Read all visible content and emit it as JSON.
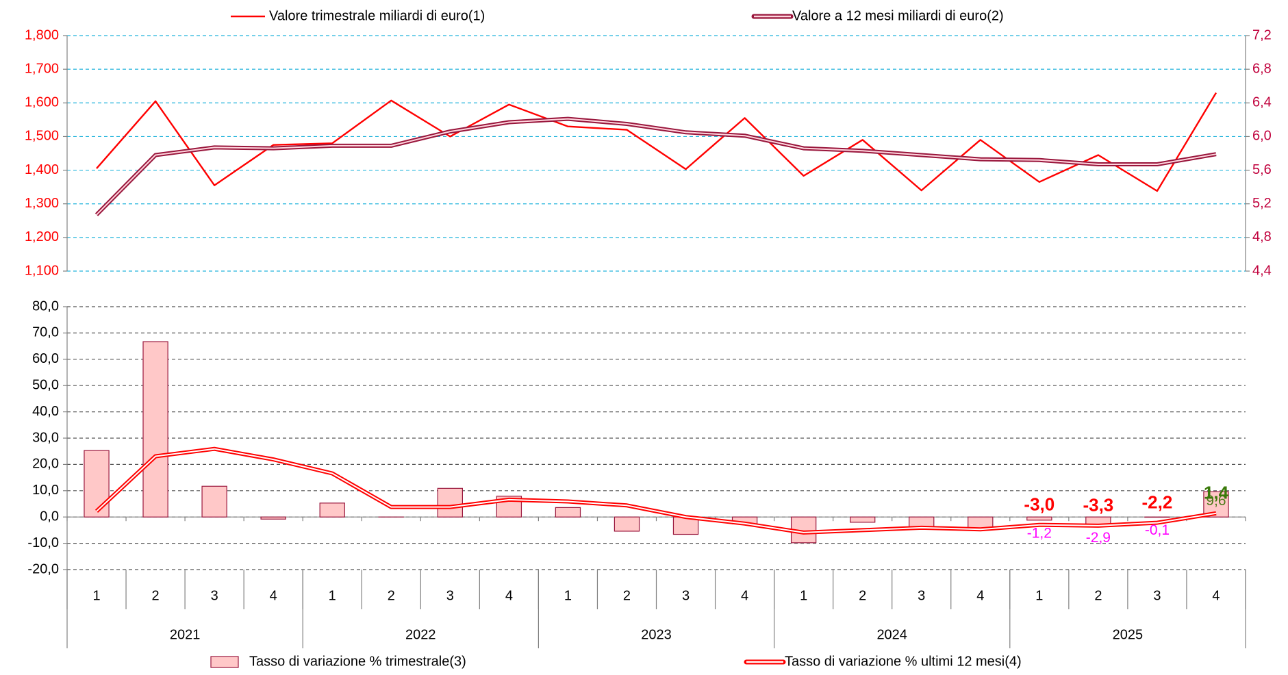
{
  "chart_data": [
    {
      "type": "line",
      "ylim": [
        1100,
        1800
      ],
      "yticks": [
        {
          "value": 1100,
          "label": "1,100"
        },
        {
          "value": 1200,
          "label": "1,200"
        },
        {
          "value": 1300,
          "label": "1,300"
        },
        {
          "value": 1400,
          "label": "1,400"
        },
        {
          "value": 1500,
          "label": "1,500"
        },
        {
          "value": 1600,
          "label": "1,600"
        },
        {
          "value": 1700,
          "label": "1,700"
        },
        {
          "value": 1800,
          "label": "1,800"
        }
      ],
      "y2lim": [
        4.4,
        7.2
      ],
      "y2ticks": [
        {
          "value": 4.4,
          "label": "4,4"
        },
        {
          "value": 4.8,
          "label": "4,8"
        },
        {
          "value": 5.2,
          "label": "5,2"
        },
        {
          "value": 5.6,
          "label": "5,6"
        },
        {
          "value": 6.0,
          "label": "6,0"
        },
        {
          "value": 6.4,
          "label": "6,4"
        },
        {
          "value": 6.8,
          "label": "6,8"
        },
        {
          "value": 7.2,
          "label": "7,2"
        }
      ],
      "ytick_color": "#ff0000",
      "y2tick_color": "#c0003c",
      "grid": true,
      "grid_color": "#22b4dc",
      "legend": "top",
      "series": [
        {
          "name": "Valore trimestrale miliardi di euro(1)",
          "color": "#ff0000",
          "values": [
            1405,
            1605,
            1355,
            1475,
            1480,
            1607,
            1500,
            1595,
            1530,
            1520,
            1403,
            1555,
            1383,
            1490,
            1340,
            1490,
            1365,
            1445,
            1338,
            1630
          ]
        },
        {
          "name": "Valore a 12 mesi miliardi di euro(2)",
          "color": "#99163c",
          "line_style": "double",
          "inner_color": "#ffd6de",
          "axis": "y2",
          "values": [
            5.07,
            5.78,
            5.87,
            5.86,
            5.89,
            5.89,
            6.06,
            6.17,
            6.21,
            6.15,
            6.05,
            6.01,
            5.86,
            5.83,
            5.78,
            5.73,
            5.72,
            5.67,
            5.67,
            5.79
          ]
        }
      ]
    },
    {
      "type": "bar",
      "categories": [
        "1",
        "2",
        "3",
        "4",
        "1",
        "2",
        "3",
        "4",
        "1",
        "2",
        "3",
        "4",
        "1",
        "2",
        "3",
        "4",
        "1",
        "2",
        "3",
        "4"
      ],
      "groups": [
        "2021",
        "2022",
        "2023",
        "2024",
        "2025"
      ],
      "ylim": [
        -20,
        80
      ],
      "yticks": [
        {
          "value": -20,
          "label": "-20,0"
        },
        {
          "value": -10,
          "label": "-10,0"
        },
        {
          "value": 0,
          "label": "0,0"
        },
        {
          "value": 10,
          "label": "10,0"
        },
        {
          "value": 20,
          "label": "20,0"
        },
        {
          "value": 30,
          "label": "30,0"
        },
        {
          "value": 40,
          "label": "40,0"
        },
        {
          "value": 50,
          "label": "50,0"
        },
        {
          "value": 60,
          "label": "60,0"
        },
        {
          "value": 70,
          "label": "70,0"
        },
        {
          "value": 80,
          "label": "80,0"
        }
      ],
      "ytick_color": "#000000",
      "grid": true,
      "grid_color": "#555555",
      "legend": "bottom",
      "series": [
        {
          "name": "Tasso di variazione % trimestrale(3)",
          "type": "bar",
          "color": "#ffc8c8",
          "edge_color": "#99163c",
          "values": [
            25.3,
            66.7,
            11.7,
            -0.8,
            5.3,
            0,
            10.9,
            7.9,
            3.6,
            -5.4,
            -6.6,
            -2.6,
            -9.8,
            -2.0,
            -4.5,
            -4.5,
            -1.2,
            -2.9,
            -0.1,
            9.6
          ],
          "value_labels": [
            null,
            null,
            null,
            null,
            null,
            null,
            null,
            null,
            null,
            null,
            null,
            null,
            null,
            null,
            null,
            null,
            "-1,2",
            "-2,9",
            "-0,1",
            "9,6"
          ],
          "value_label_colors": [
            null,
            null,
            null,
            null,
            null,
            null,
            null,
            null,
            null,
            null,
            null,
            null,
            null,
            null,
            null,
            null,
            "#ff00ff",
            "#ff00ff",
            "#ff00ff",
            "#4d7a1a"
          ]
        },
        {
          "name": "Tasso di variazione % ultimi 12 mesi(4)",
          "type": "line",
          "color": "#ff0000",
          "line_style": "double",
          "inner_color": "#ffffff",
          "values": [
            2.2,
            23.1,
            25.9,
            21.9,
            16.6,
            3.8,
            3.8,
            6.6,
            5.9,
            4.4,
            0,
            -2.5,
            -5.9,
            -5.0,
            -4.1,
            -4.7,
            -3.0,
            -3.3,
            -2.2,
            1.4
          ],
          "value_labels": [
            null,
            null,
            null,
            null,
            null,
            null,
            null,
            null,
            null,
            null,
            null,
            null,
            null,
            null,
            null,
            null,
            "-3,0",
            "-3,3",
            "-2,2",
            "1,4"
          ],
          "value_label_colors": [
            null,
            null,
            null,
            null,
            null,
            null,
            null,
            null,
            null,
            null,
            null,
            null,
            null,
            null,
            null,
            null,
            "#ff0000",
            "#ff0000",
            "#ff0000",
            "#3a7a0a"
          ]
        }
      ]
    }
  ]
}
